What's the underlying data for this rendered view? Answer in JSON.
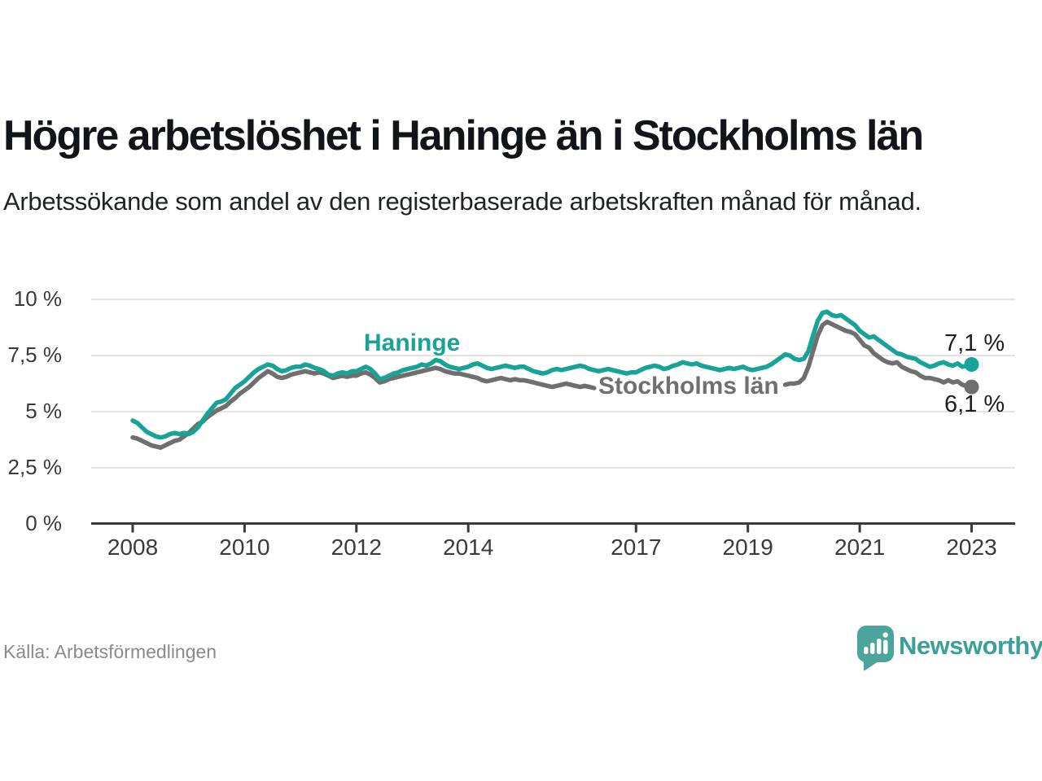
{
  "header": {
    "title": "Högre arbetslöshet i Haninge än i Stockholms län",
    "subtitle": "Arbetssökande som andel av den registerbaserade arbetskraften månad för månad."
  },
  "footer": {
    "source": "Källa: Arbetsförmedlingen",
    "brand": "Newsworthy"
  },
  "colors": {
    "haninge": "#17a398",
    "stockholm": "#6f6f6f",
    "grid": "#e3e3e3",
    "axis": "#3a3a3a",
    "end_label_text": "#1d1d1d",
    "logo_icon": "#4ba59d",
    "logo_text": "#3ba198"
  },
  "chart_data": {
    "type": "line",
    "title": "Högre arbetslöshet i Haninge än i Stockholms län",
    "xlabel": "",
    "ylabel": "Arbetssökande som andel av den registerbaserade arbetskraften",
    "unit": "%",
    "frequency": "monthly",
    "x_start": "2008-01",
    "x_end": "2023-01",
    "ylim": [
      0,
      10
    ],
    "grid": true,
    "legend_position": "inline-labels",
    "y_ticks": [
      {
        "value": 0,
        "label": "0 %"
      },
      {
        "value": 2.5,
        "label": "2,5 %"
      },
      {
        "value": 5,
        "label": "5 %"
      },
      {
        "value": 7.5,
        "label": "7,5 %"
      },
      {
        "value": 10,
        "label": "10 %"
      }
    ],
    "x_ticks": [
      {
        "year": 2008,
        "label": "2008"
      },
      {
        "year": 2010,
        "label": "2010"
      },
      {
        "year": 2012,
        "label": "2012"
      },
      {
        "year": 2014,
        "label": "2014"
      },
      {
        "year": 2017,
        "label": "2017"
      },
      {
        "year": 2019,
        "label": "2019"
      },
      {
        "year": 2021,
        "label": "2021"
      },
      {
        "year": 2023,
        "label": "2023"
      }
    ],
    "series": [
      {
        "name": "Haninge",
        "color": "#17a398",
        "end_label": "7,1 %",
        "end_value": 7.1,
        "values": [
          4.6,
          4.5,
          4.3,
          4.1,
          4.0,
          3.9,
          3.85,
          3.9,
          4.0,
          4.05,
          4.0,
          4.05,
          4.0,
          4.1,
          4.3,
          4.6,
          4.9,
          5.15,
          5.4,
          5.45,
          5.55,
          5.8,
          6.05,
          6.2,
          6.35,
          6.55,
          6.75,
          6.9,
          7.0,
          7.1,
          7.05,
          6.9,
          6.8,
          6.85,
          6.95,
          7.0,
          7.0,
          7.1,
          7.05,
          6.95,
          6.9,
          6.8,
          6.65,
          6.6,
          6.7,
          6.75,
          6.7,
          6.8,
          6.8,
          6.9,
          7.0,
          6.9,
          6.7,
          6.45,
          6.5,
          6.6,
          6.7,
          6.75,
          6.85,
          6.9,
          6.95,
          7.0,
          7.1,
          7.05,
          7.15,
          7.3,
          7.25,
          7.1,
          7.0,
          6.95,
          6.9,
          6.95,
          7.0,
          7.1,
          7.15,
          7.05,
          6.95,
          6.9,
          6.95,
          7.0,
          7.05,
          7.0,
          6.95,
          7.0,
          7.0,
          6.9,
          6.8,
          6.75,
          6.7,
          6.75,
          6.85,
          6.9,
          6.85,
          6.9,
          6.95,
          7.0,
          7.05,
          7.0,
          6.9,
          6.85,
          6.8,
          6.85,
          6.9,
          6.85,
          6.8,
          6.75,
          6.7,
          6.75,
          6.75,
          6.85,
          6.95,
          7.0,
          7.05,
          7.0,
          6.9,
          6.95,
          7.05,
          7.1,
          7.2,
          7.15,
          7.1,
          7.15,
          7.05,
          7.0,
          6.95,
          6.9,
          6.85,
          6.9,
          6.95,
          6.9,
          6.95,
          7.0,
          6.9,
          6.85,
          6.9,
          6.95,
          7.0,
          7.1,
          7.25,
          7.4,
          7.55,
          7.5,
          7.35,
          7.3,
          7.35,
          7.7,
          8.4,
          9.05,
          9.4,
          9.45,
          9.3,
          9.25,
          9.3,
          9.15,
          9.0,
          8.85,
          8.6,
          8.45,
          8.3,
          8.35,
          8.2,
          8.05,
          7.9,
          7.75,
          7.6,
          7.55,
          7.45,
          7.4,
          7.35,
          7.2,
          7.1,
          7.0,
          7.05,
          7.15,
          7.2,
          7.1,
          7.05,
          7.15,
          7.0,
          7.05,
          7.1
        ]
      },
      {
        "name": "Stockholms län",
        "color": "#6f6f6f",
        "end_label": "6,1 %",
        "end_value": 6.1,
        "values": [
          3.85,
          3.8,
          3.7,
          3.6,
          3.5,
          3.45,
          3.4,
          3.5,
          3.6,
          3.7,
          3.75,
          3.9,
          4.05,
          4.25,
          4.45,
          4.55,
          4.75,
          4.9,
          5.05,
          5.15,
          5.25,
          5.45,
          5.6,
          5.8,
          5.95,
          6.1,
          6.3,
          6.5,
          6.65,
          6.8,
          6.7,
          6.55,
          6.5,
          6.55,
          6.65,
          6.7,
          6.75,
          6.8,
          6.75,
          6.7,
          6.75,
          6.7,
          6.6,
          6.5,
          6.55,
          6.6,
          6.55,
          6.6,
          6.6,
          6.7,
          6.75,
          6.65,
          6.5,
          6.3,
          6.35,
          6.45,
          6.5,
          6.55,
          6.6,
          6.65,
          6.7,
          6.75,
          6.8,
          6.85,
          6.9,
          6.95,
          6.9,
          6.8,
          6.75,
          6.7,
          6.7,
          6.65,
          6.6,
          6.55,
          6.5,
          6.4,
          6.35,
          6.4,
          6.45,
          6.5,
          6.45,
          6.4,
          6.45,
          6.4,
          6.4,
          6.35,
          6.3,
          6.25,
          6.2,
          6.15,
          6.1,
          6.15,
          6.2,
          6.25,
          6.2,
          6.15,
          6.1,
          6.15,
          6.1,
          6.05,
          null,
          null,
          null,
          null,
          null,
          null,
          null,
          null,
          null,
          null,
          null,
          null,
          null,
          null,
          null,
          null,
          null,
          null,
          null,
          null,
          null,
          null,
          null,
          null,
          null,
          null,
          null,
          null,
          null,
          null,
          null,
          null,
          null,
          null,
          null,
          null,
          null,
          null,
          null,
          null,
          6.2,
          6.25,
          6.25,
          6.3,
          6.5,
          7.0,
          7.7,
          8.4,
          8.85,
          9.0,
          8.9,
          8.8,
          8.7,
          8.6,
          8.55,
          8.45,
          8.2,
          7.95,
          7.85,
          7.6,
          7.45,
          7.3,
          7.2,
          7.15,
          7.2,
          7.0,
          6.9,
          6.8,
          6.75,
          6.6,
          6.5,
          6.5,
          6.45,
          6.4,
          6.3,
          6.4,
          6.3,
          6.35,
          6.2,
          6.15,
          6.1
        ]
      }
    ]
  }
}
